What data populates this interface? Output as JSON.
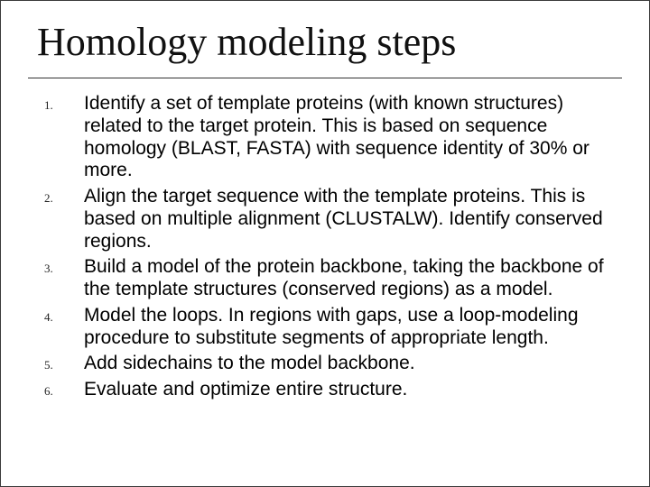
{
  "title": "Homology modeling steps",
  "items": [
    {
      "num": "1.",
      "text": "Identify a set of template proteins (with known structures) related to the target protein.  This is based on sequence homology (BLAST, FASTA) with sequence identity of 30% or more."
    },
    {
      "num": "2.",
      "text": "Align the target sequence with the template proteins.  This is based on multiple alignment (CLUSTALW). Identify conserved regions."
    },
    {
      "num": "3.",
      "text": "Build a model of the protein backbone, taking the backbone of the template structures (conserved regions) as a model."
    },
    {
      "num": "4.",
      "text": "Model the loops.  In regions with gaps, use a loop-modeling procedure to substitute segments of appropriate length."
    },
    {
      "num": "5.",
      "text": "Add sidechains to the model backbone."
    },
    {
      "num": "6.",
      "text": "Evaluate and optimize entire structure."
    }
  ],
  "colors": {
    "background": "#ffffff",
    "text": "#000000",
    "rule": "#333333",
    "border": "#3a3a3a"
  },
  "fonts": {
    "title_family": "Times New Roman",
    "title_size_pt": 33,
    "body_family": "Arial",
    "body_size_pt": 16,
    "number_family": "Times New Roman",
    "number_size_pt": 10
  }
}
